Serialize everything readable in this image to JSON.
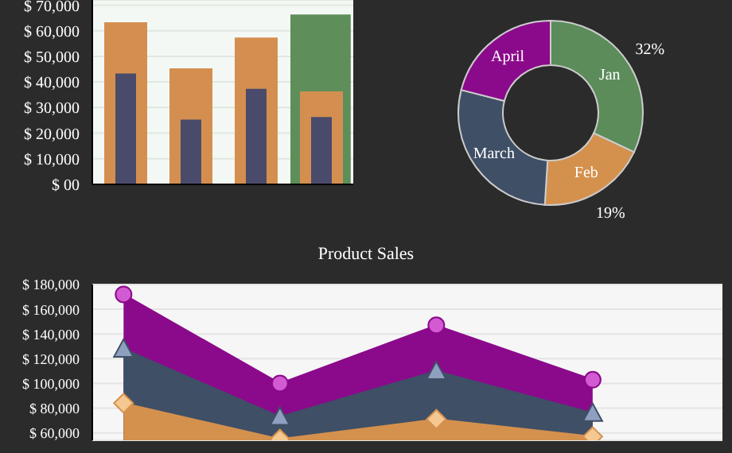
{
  "chart_data": [
    {
      "type": "bar",
      "categories": [
        null,
        null,
        null,
        null
      ],
      "series": [
        {
          "color": "#5e8f5a",
          "values": [
            null,
            null,
            null,
            66000
          ]
        },
        {
          "color": "#d48f50",
          "values": [
            63000,
            45000,
            57000,
            36000
          ]
        },
        {
          "color": "#4a4b6b",
          "values": [
            43000,
            25000,
            37000,
            26000
          ]
        }
      ],
      "ylim": [
        0,
        72000
      ],
      "yticks": [
        {
          "value": 0,
          "label": "$ 00"
        },
        {
          "value": 10000,
          "label": "$ 10,000"
        },
        {
          "value": 20000,
          "label": "$ 20,000"
        },
        {
          "value": 30000,
          "label": "$ 30,000"
        },
        {
          "value": 40000,
          "label": "$ 40,000"
        },
        {
          "value": 50000,
          "label": "$ 50,000"
        },
        {
          "value": 60000,
          "label": "$ 60,000"
        },
        {
          "value": 70000,
          "label": "$ 70,000"
        }
      ],
      "grid": "y",
      "tick_labels": "y"
    },
    {
      "type": "donut",
      "categories": [
        "Jan",
        "Feb",
        "March",
        "April"
      ],
      "values": [
        32,
        19,
        28,
        21
      ],
      "colors": [
        "#5b8c5a",
        "#d4914e",
        "#3f4f66",
        "#8b0a8b"
      ],
      "value_labels": [
        "32%",
        "19%",
        null,
        null
      ]
    },
    {
      "type": "area",
      "title": "Product Sales",
      "categories": [
        null,
        null,
        null,
        null
      ],
      "series": [
        {
          "color": "#d4914e",
          "values": [
            84000,
            55000,
            71000,
            57000
          ],
          "marker": "diamond"
        },
        {
          "color": "#3f4f66",
          "values": [
            128000,
            73000,
            110000,
            76000
          ],
          "marker": "triangle"
        },
        {
          "color": "#8b0a8b",
          "values": [
            172000,
            100000,
            147000,
            103000
          ],
          "marker": "circle"
        }
      ],
      "ylim": [
        54000,
        180000
      ],
      "yticks": [
        {
          "value": 60000,
          "label": "$ 60,000"
        },
        {
          "value": 80000,
          "label": "$ 80,000"
        },
        {
          "value": 100000,
          "label": "$ 100,000"
        },
        {
          "value": 120000,
          "label": "$ 120,000"
        },
        {
          "value": 140000,
          "label": "$ 140,000"
        },
        {
          "value": 160000,
          "label": "$ 160,000"
        },
        {
          "value": 180000,
          "label": "$ 180,000"
        }
      ],
      "grid": "y",
      "tick_labels": "y"
    }
  ]
}
